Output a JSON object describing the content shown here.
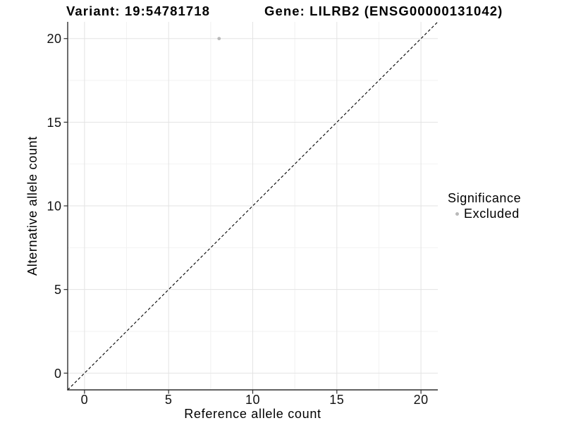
{
  "chart_data": {
    "type": "scatter",
    "titles": {
      "variant": "Variant: 19:54781718",
      "gene": "Gene: LILRB2 (ENSG00000131042)"
    },
    "xlabel": "Reference allele count",
    "ylabel": "Alternative allele count",
    "xlim": [
      -1,
      21
    ],
    "ylim": [
      -1,
      21
    ],
    "x_ticks": [
      0,
      5,
      10,
      15,
      20
    ],
    "y_ticks": [
      0,
      5,
      10,
      15,
      20
    ],
    "x_minor_gridlines": [
      2.5,
      7.5,
      12.5,
      17.5
    ],
    "y_minor_gridlines": [
      2.5,
      7.5,
      12.5,
      17.5
    ],
    "grid": "on",
    "legend": {
      "position": "right",
      "title": "Significance",
      "items": [
        {
          "label": "Excluded",
          "color": "#b9b9b9"
        }
      ]
    },
    "identity_line": {
      "style": "dashed",
      "color": "#000000",
      "x1": -1,
      "y1": -1,
      "x2": 21,
      "y2": 21
    },
    "series": [
      {
        "name": "Excluded",
        "color": "#b9b9b9",
        "marker_radius_px": 2.4,
        "points": [
          {
            "x": 8,
            "y": 20
          }
        ]
      }
    ],
    "colors": {
      "axis": "#2e2e2e",
      "tick_label": "#111111",
      "title": "#000000",
      "major_grid": "#e3e3e3",
      "minor_grid": "#f2f2f2",
      "background": "#ffffff"
    }
  }
}
